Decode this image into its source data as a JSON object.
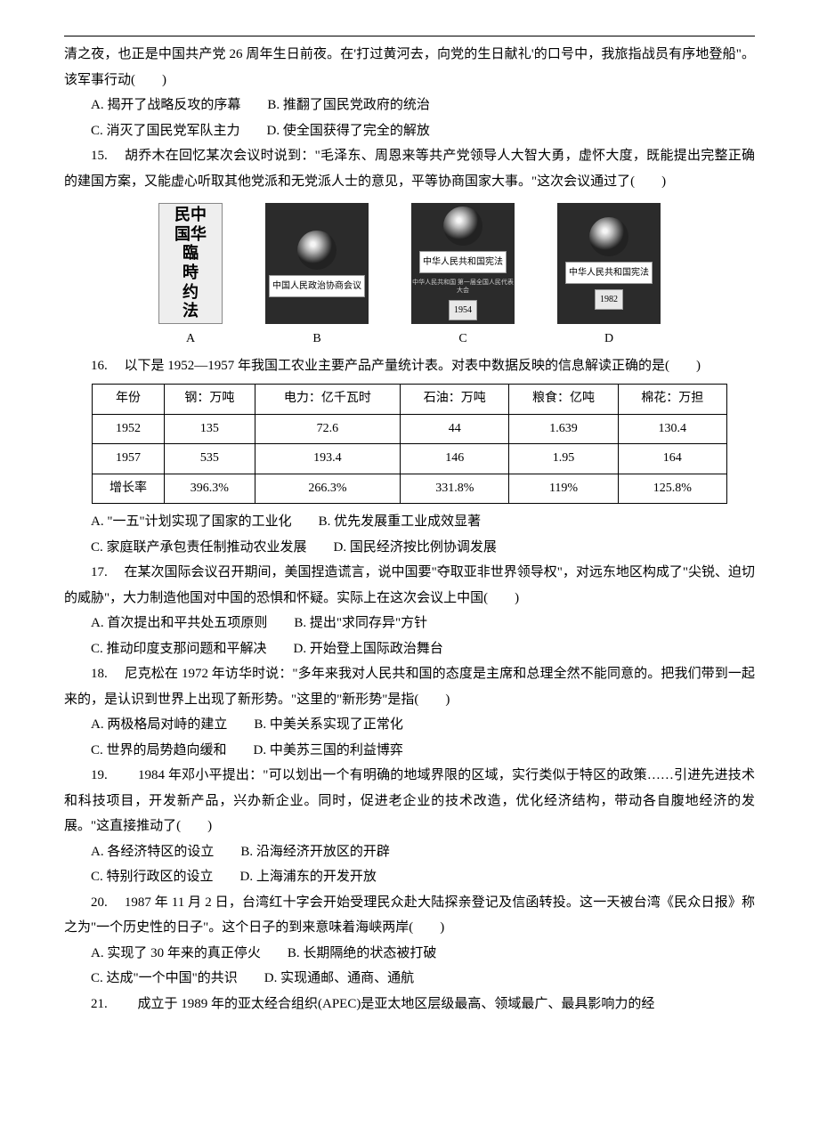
{
  "q14": {
    "pre": "清之夜，也正是中国共产党 26 周年生日前夜。在'打过黄河去，向党的生日献礼'的口号中，我旅指战员有序地登船\"。该军事行动(　　)",
    "A": "A. 揭开了战略反攻的序幕",
    "B": "B. 推翻了国民党政府的统治",
    "C": "C. 消灭了国民党军队主力",
    "D": "D. 使全国获得了完全的解放"
  },
  "q15": {
    "stem": "15. 　胡乔木在回忆某次会议时说到：\"毛泽东、周恩来等共产党领导人大智大勇，虚怀大度，既能提出完整正确的建国方案，又能虚心听取其他党派和无党派人士的意见，平等协商国家大事。\"这次会议通过了(　　)",
    "bookA": {
      "line1": "民中",
      "line2": "国华",
      "line3": "臨",
      "line4": "時",
      "line5": "约",
      "line6": "法",
      "letter": "A"
    },
    "bookB": {
      "label": "中国人民政治协商会议",
      "letter": "B"
    },
    "bookC": {
      "label": "中华人民共和国宪法",
      "sub": "中华人民共和国 第一届全国人民代表大会",
      "year": "1954",
      "letter": "C"
    },
    "bookD": {
      "label": "中华人民共和国宪法",
      "year": "1982",
      "letter": "D"
    }
  },
  "q16": {
    "stem": "16. 　以下是 1952—1957 年我国工农业主要产品产量统计表。对表中数据反映的信息解读正确的是(　　)",
    "table": {
      "headers": [
        "年份",
        "钢：万吨",
        "电力：亿千瓦时",
        "石油：万吨",
        "粮食：亿吨",
        "棉花：万担"
      ],
      "rows": [
        [
          "1952",
          "135",
          "72.6",
          "44",
          "1.639",
          "130.4"
        ],
        [
          "1957",
          "535",
          "193.4",
          "146",
          "1.95",
          "164"
        ],
        [
          "增长率",
          "396.3%",
          "266.3%",
          "331.8%",
          "119%",
          "125.8%"
        ]
      ]
    },
    "A": "A. \"一五\"计划实现了国家的工业化",
    "B": "B. 优先发展重工业成效显著",
    "C": "C. 家庭联产承包责任制推动农业发展",
    "D": "D. 国民经济按比例协调发展"
  },
  "q17": {
    "stem": "17. 　在某次国际会议召开期间，美国捏造谎言，说中国要\"夺取亚非世界领导权\"，对远东地区构成了\"尖锐、迫切的威胁\"，大力制造他国对中国的恐惧和怀疑。实际上在这次会议上中国(　　)",
    "A": "A. 首次提出和平共处五项原则",
    "B": "B. 提出\"求同存异\"方针",
    "C": "C. 推动印度支那问题和平解决",
    "D": "D. 开始登上国际政治舞台"
  },
  "q18": {
    "stem": "18. 　尼克松在 1972 年访华时说：\"多年来我对人民共和国的态度是主席和总理全然不能同意的。把我们带到一起来的，是认识到世界上出现了新形势。\"这里的\"新形势\"是指(　　)",
    "A": "A. 两极格局对峙的建立",
    "B": "B. 中美关系实现了正常化",
    "C": "C. 世界的局势趋向缓和",
    "D": "D. 中美苏三国的利益博弈"
  },
  "q19": {
    "stem": "19. 　　1984 年邓小平提出：\"可以划出一个有明确的地域界限的区域，实行类似于特区的政策……引进先进技术和科技项目，开发新产品，兴办新企业。同时，促进老企业的技术改造，优化经济结构，带动各自腹地经济的发展。\"这直接推动了(　　)",
    "A": "A. 各经济特区的设立",
    "B": "B. 沿海经济开放区的开辟",
    "C": "C. 特别行政区的设立",
    "D": "D. 上海浦东的开发开放"
  },
  "q20": {
    "stem": "20. 　1987 年 11 月 2 日，台湾红十字会开始受理民众赴大陆探亲登记及信函转投。这一天被台湾《民众日报》称之为\"一个历史性的日子\"。这个日子的到来意味着海峡两岸(　　)",
    "A": "A. 实现了 30 年来的真正停火",
    "B": "B. 长期隔绝的状态被打破",
    "C": "C. 达成\"一个中国\"的共识",
    "D": "D. 实现通邮、通商、通航"
  },
  "q21": {
    "stem": "21. 　　成立于 1989 年的亚太经合组织(APEC)是亚太地区层级最高、领域最广、最具影响力的经"
  }
}
